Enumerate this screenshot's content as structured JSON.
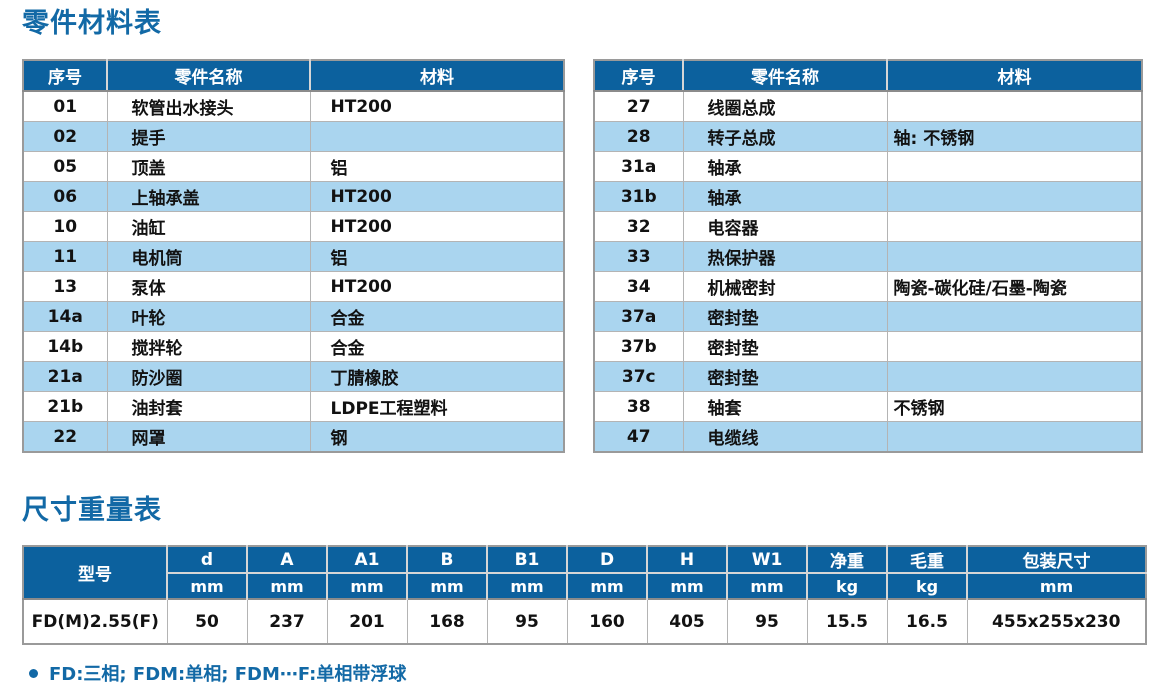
{
  "parts_section": {
    "title": "零件材料表",
    "headers": {
      "no": "序号",
      "name": "零件名称",
      "material": "材料"
    },
    "left_rows": [
      {
        "no": "01",
        "name": "软管出水接头",
        "material": "HT200"
      },
      {
        "no": "02",
        "name": "提手",
        "material": ""
      },
      {
        "no": "05",
        "name": "顶盖",
        "material": "铝"
      },
      {
        "no": "06",
        "name": "上轴承盖",
        "material": "HT200"
      },
      {
        "no": "10",
        "name": "油缸",
        "material": "HT200"
      },
      {
        "no": "11",
        "name": "电机筒",
        "material": "铝"
      },
      {
        "no": "13",
        "name": "泵体",
        "material": "HT200"
      },
      {
        "no": "14a",
        "name": "叶轮",
        "material": "合金"
      },
      {
        "no": "14b",
        "name": "搅拌轮",
        "material": "合金"
      },
      {
        "no": "21a",
        "name": "防沙圈",
        "material": "丁腈橡胶"
      },
      {
        "no": "21b",
        "name": "油封套",
        "material": "LDPE工程塑料"
      },
      {
        "no": "22",
        "name": "网罩",
        "material": "钢"
      }
    ],
    "right_rows": [
      {
        "no": "27",
        "name": "线圈总成",
        "material": ""
      },
      {
        "no": "28",
        "name": "转子总成",
        "material": "轴: 不锈钢"
      },
      {
        "no": "31a",
        "name": "轴承",
        "material": ""
      },
      {
        "no": "31b",
        "name": "轴承",
        "material": ""
      },
      {
        "no": "32",
        "name": "电容器",
        "material": ""
      },
      {
        "no": "33",
        "name": "热保护器",
        "material": ""
      },
      {
        "no": "34",
        "name": "机械密封",
        "material": "陶瓷-碳化硅/石墨-陶瓷"
      },
      {
        "no": "37a",
        "name": "密封垫",
        "material": ""
      },
      {
        "no": "37b",
        "name": "密封垫",
        "material": ""
      },
      {
        "no": "37c",
        "name": "密封垫",
        "material": ""
      },
      {
        "no": "38",
        "name": "轴套",
        "material": "不锈钢"
      },
      {
        "no": "47",
        "name": "电缆线",
        "material": ""
      }
    ]
  },
  "dimensions_section": {
    "title": "尺寸重量表",
    "model_header": "型号",
    "columns": [
      {
        "label": "d",
        "unit": "mm"
      },
      {
        "label": "A",
        "unit": "mm"
      },
      {
        "label": "A1",
        "unit": "mm"
      },
      {
        "label": "B",
        "unit": "mm"
      },
      {
        "label": "B1",
        "unit": "mm"
      },
      {
        "label": "D",
        "unit": "mm"
      },
      {
        "label": "H",
        "unit": "mm"
      },
      {
        "label": "W1",
        "unit": "mm"
      },
      {
        "label": "净重",
        "unit": "kg"
      },
      {
        "label": "毛重",
        "unit": "kg"
      },
      {
        "label": "包装尺寸",
        "unit": "mm"
      }
    ],
    "rows": [
      {
        "model": "FD(M)2.55(F)",
        "values": [
          "50",
          "237",
          "201",
          "168",
          "95",
          "160",
          "405",
          "95",
          "15.5",
          "16.5",
          "455x255x230"
        ]
      }
    ],
    "footnote": "FD:三相; FDM:单相; FDM⋯F:单相带浮球"
  },
  "colors": {
    "header_bg": "#0c619e",
    "alt_row_bg": "#aad5ef",
    "title_text": "#1269a6",
    "footnote_text": "#1269a6",
    "border_dark": "#8b8b8b",
    "border_light": "#b4b4b4"
  }
}
